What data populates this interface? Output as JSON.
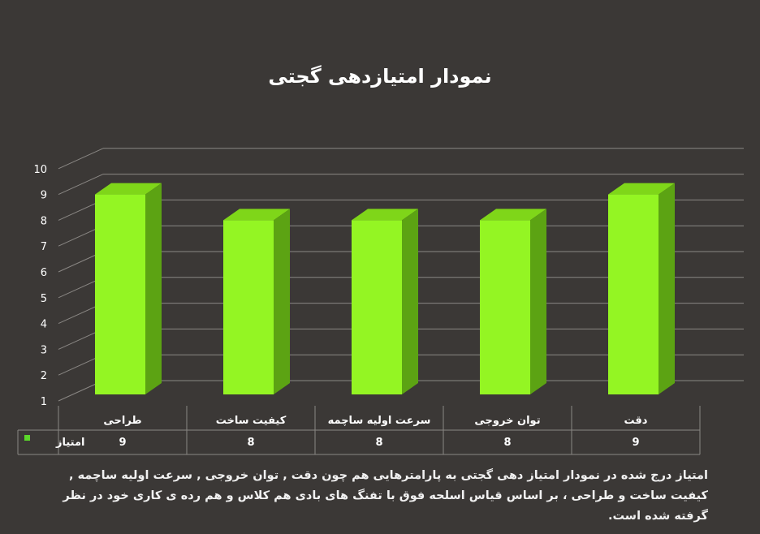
{
  "caption": "امتیاز درج شده در نمودار امتیاز دهی گجتی  به پارامترهایی هم چون دقت , توان خروجی , سرعت اولیه ساچمه , کیفیت ساخت و طراحی ، بر اساس قیاس اسلحه فوق با تفنگ های بادی هم کلاس و هم رده ی کاری خود در نظر گرفته شده است.",
  "colors": {
    "background": "#3b3836",
    "bar_front": "#94f523",
    "bar_top": "#7fd619",
    "bar_side": "#5ca313",
    "gridline": "#8a8784",
    "table_line": "#8a8784",
    "legend_key": "#5bd62a"
  },
  "chart_data": {
    "type": "bar",
    "title": "نمودار امتیازدهی گجتی",
    "categories": [
      "دقت",
      "توان خروجی",
      "سرعت اولیه ساچمه",
      "کیفیت ساخت",
      "طراحی"
    ],
    "series": [
      {
        "name": "امتیاز",
        "values": [
          9,
          8,
          8,
          8,
          9
        ]
      }
    ],
    "ylim": [
      1,
      10
    ],
    "yticks": [
      1,
      2,
      3,
      4,
      5,
      6,
      7,
      8,
      9,
      10
    ],
    "grid": true,
    "three_d": true,
    "data_table": true,
    "legend": "data-table"
  }
}
